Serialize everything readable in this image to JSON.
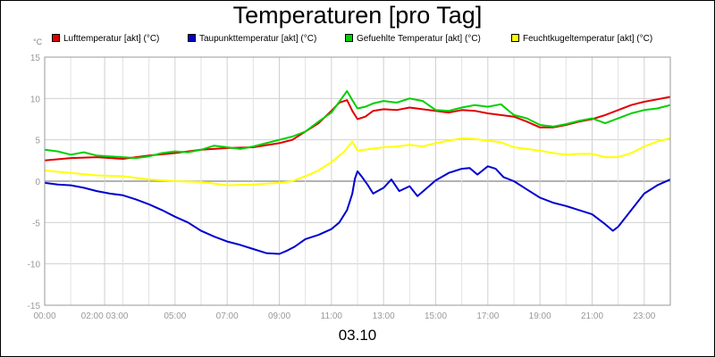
{
  "chart_data": {
    "type": "line",
    "title": "Temperaturen [pro Tag]",
    "date_label": "03.10",
    "y_unit": "°C",
    "ylim": [
      -15,
      15
    ],
    "y_ticks": [
      "-15",
      "-10",
      "-5",
      "0",
      "5",
      "10",
      "15"
    ],
    "xlim": [
      0,
      24
    ],
    "x_ticks": [
      {
        "at": 0,
        "label": "00:00"
      },
      {
        "at": 2.3,
        "label": "02:00 03:00"
      },
      {
        "at": 5,
        "label": "05:00"
      },
      {
        "at": 7,
        "label": "07:00"
      },
      {
        "at": 9,
        "label": "09:00"
      },
      {
        "at": 11,
        "label": "11:00"
      },
      {
        "at": 13,
        "label": "13:00"
      },
      {
        "at": 15,
        "label": "15:00"
      },
      {
        "at": 17,
        "label": "17:00"
      },
      {
        "at": 19,
        "label": "19:00"
      },
      {
        "at": 21,
        "label": "21:00"
      },
      {
        "at": 23,
        "label": "23:00"
      }
    ],
    "grid": true,
    "zero_line_color": "#999999",
    "legend_placement": "top",
    "series": [
      {
        "name": "Lufttemperatur [akt] (°C)",
        "color": "#e00000",
        "x": [
          0,
          1,
          2,
          3,
          4,
          5,
          6,
          7,
          8,
          9,
          9.5,
          10,
          10.5,
          11,
          11.3,
          11.6,
          11.8,
          12,
          12.3,
          12.6,
          13,
          13.5,
          14,
          14.5,
          15,
          15.5,
          16,
          16.5,
          17,
          17.5,
          18,
          18.5,
          19,
          19.5,
          20,
          20.5,
          21,
          21.5,
          22,
          22.5,
          23,
          23.5,
          24
        ],
        "y": [
          2.5,
          2.8,
          2.9,
          2.7,
          3.1,
          3.4,
          3.8,
          4.0,
          4.1,
          4.6,
          5.0,
          6.0,
          7.0,
          8.5,
          9.5,
          9.8,
          8.5,
          7.5,
          7.8,
          8.5,
          8.7,
          8.6,
          8.9,
          8.7,
          8.5,
          8.3,
          8.6,
          8.5,
          8.2,
          8.0,
          7.8,
          7.2,
          6.5,
          6.5,
          6.8,
          7.2,
          7.5,
          8.0,
          8.6,
          9.2,
          9.6,
          9.9,
          10.2
        ]
      },
      {
        "name": "Taupunkttemperatur [akt] (°C)",
        "color": "#0000d0",
        "x": [
          0,
          0.5,
          1,
          1.5,
          2,
          2.5,
          3,
          3.5,
          4,
          4.5,
          5,
          5.5,
          6,
          6.5,
          7,
          7.5,
          8,
          8.5,
          9,
          9.3,
          9.6,
          10,
          10.5,
          11,
          11.3,
          11.6,
          11.8,
          11.9,
          12,
          12.2,
          12.4,
          12.6,
          13,
          13.3,
          13.6,
          14,
          14.3,
          14.6,
          15,
          15.5,
          16,
          16.3,
          16.6,
          17,
          17.3,
          17.6,
          18,
          18.5,
          19,
          19.5,
          20,
          20.5,
          21,
          21.5,
          21.8,
          22,
          22.5,
          23,
          23.5,
          24
        ],
        "y": [
          -0.2,
          -0.4,
          -0.5,
          -0.8,
          -1.2,
          -1.5,
          -1.7,
          -2.2,
          -2.8,
          -3.5,
          -4.3,
          -5.0,
          -6.0,
          -6.7,
          -7.3,
          -7.7,
          -8.2,
          -8.7,
          -8.8,
          -8.4,
          -7.9,
          -7.0,
          -6.5,
          -5.8,
          -5.0,
          -3.5,
          -1.5,
          0.3,
          1.2,
          0.4,
          -0.5,
          -1.5,
          -0.8,
          0.2,
          -1.2,
          -0.6,
          -1.8,
          -1.0,
          0.1,
          1.0,
          1.5,
          1.6,
          0.8,
          1.8,
          1.5,
          0.5,
          0.0,
          -1.0,
          -2.0,
          -2.6,
          -3.0,
          -3.5,
          -4.0,
          -5.2,
          -6.0,
          -5.5,
          -3.5,
          -1.5,
          -0.5,
          0.2
        ]
      },
      {
        "name": "Gefuehlte Temperatur [akt] (°C)",
        "color": "#00d000",
        "x": [
          0,
          0.5,
          1,
          1.5,
          2,
          2.5,
          3,
          3.5,
          4,
          4.5,
          5,
          5.5,
          6,
          6.5,
          7,
          7.5,
          8,
          8.5,
          9,
          9.5,
          10,
          10.5,
          11,
          11.3,
          11.6,
          11.8,
          12,
          12.3,
          12.6,
          13,
          13.5,
          14,
          14.5,
          15,
          15.5,
          16,
          16.5,
          17,
          17.5,
          18,
          18.5,
          19,
          19.5,
          20,
          20.5,
          21,
          21.5,
          22,
          22.5,
          23,
          23.5,
          24
        ],
        "y": [
          3.8,
          3.6,
          3.2,
          3.5,
          3.1,
          3.0,
          2.9,
          2.8,
          3.0,
          3.4,
          3.6,
          3.5,
          3.8,
          4.3,
          4.1,
          3.9,
          4.2,
          4.6,
          5.0,
          5.4,
          6.0,
          7.2,
          8.3,
          9.6,
          10.9,
          9.8,
          8.8,
          9.0,
          9.4,
          9.7,
          9.5,
          10.0,
          9.7,
          8.6,
          8.5,
          8.9,
          9.2,
          9.0,
          9.3,
          8.0,
          7.6,
          6.8,
          6.6,
          6.9,
          7.3,
          7.6,
          7.0,
          7.6,
          8.2,
          8.6,
          8.8,
          9.2
        ]
      },
      {
        "name": "Feuchtkugeltemperatur [akt] (°C)",
        "color": "#ffff00",
        "x": [
          0,
          1,
          2,
          3,
          4,
          5,
          6,
          7,
          8,
          9,
          9.5,
          10,
          10.5,
          11,
          11.5,
          11.8,
          12,
          12.5,
          13,
          13.5,
          14,
          14.5,
          15,
          15.5,
          16,
          16.5,
          17,
          17.5,
          18,
          18.5,
          19,
          19.5,
          20,
          20.5,
          21,
          21.5,
          22,
          22.5,
          23,
          23.5,
          24
        ],
        "y": [
          1.3,
          1.0,
          0.7,
          0.6,
          0.2,
          0.0,
          -0.1,
          -0.5,
          -0.4,
          -0.2,
          0.0,
          0.6,
          1.3,
          2.3,
          3.6,
          4.8,
          3.7,
          3.9,
          4.1,
          4.2,
          4.4,
          4.2,
          4.6,
          4.9,
          5.2,
          5.1,
          4.9,
          4.7,
          4.1,
          3.9,
          3.7,
          3.4,
          3.2,
          3.3,
          3.3,
          2.9,
          2.9,
          3.4,
          4.2,
          4.8,
          5.2
        ]
      }
    ]
  }
}
